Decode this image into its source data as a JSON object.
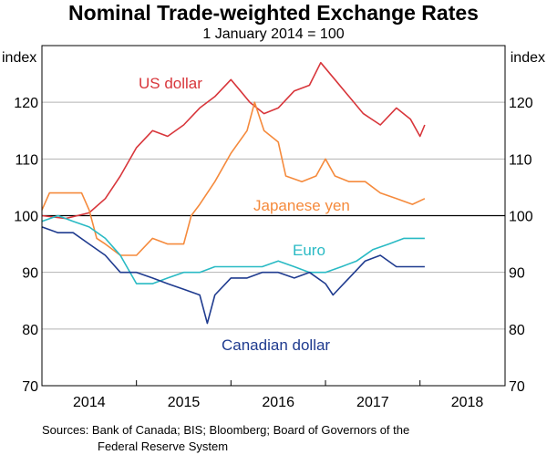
{
  "chart_data": {
    "type": "line",
    "title": "Nominal Trade-weighted Exchange Rates",
    "subtitle": "1 January 2014 = 100",
    "ylabel_left": "index",
    "ylabel_right": "index",
    "ylim": [
      70,
      130
    ],
    "yticks": [
      70,
      80,
      90,
      100,
      110,
      120
    ],
    "xlim": [
      2014.0,
      2018.9
    ],
    "xticks": [
      {
        "label": "2014",
        "center": 2014.5
      },
      {
        "label": "2015",
        "center": 2015.5
      },
      {
        "label": "2016",
        "center": 2016.5
      },
      {
        "label": "2017",
        "center": 2017.5
      },
      {
        "label": "2018",
        "center": 2018.5
      }
    ],
    "year_boundaries": [
      2015,
      2016,
      2017,
      2018
    ],
    "baseline": 100,
    "grid": true,
    "source": "Sources:  Bank of Canada; BIS; Bloomberg; Board of Governors of the",
    "source_line2": "Federal Reserve System",
    "series": [
      {
        "name": "US dollar",
        "color": "#d8363b",
        "points": [
          [
            2014.0,
            100
          ],
          [
            2014.25,
            99.5
          ],
          [
            2014.5,
            100.5
          ],
          [
            2014.67,
            103
          ],
          [
            2014.83,
            107
          ],
          [
            2015.0,
            112
          ],
          [
            2015.17,
            115
          ],
          [
            2015.33,
            114
          ],
          [
            2015.5,
            116
          ],
          [
            2015.67,
            119
          ],
          [
            2015.83,
            121
          ],
          [
            2016.0,
            124
          ],
          [
            2016.1,
            122
          ],
          [
            2016.2,
            120
          ],
          [
            2016.35,
            118
          ],
          [
            2016.5,
            119
          ],
          [
            2016.67,
            122
          ],
          [
            2016.83,
            123
          ],
          [
            2016.95,
            127
          ],
          [
            2017.1,
            124
          ],
          [
            2017.25,
            121
          ],
          [
            2017.4,
            118
          ],
          [
            2017.58,
            116
          ],
          [
            2017.75,
            119
          ],
          [
            2017.9,
            117
          ],
          [
            2018.0,
            114
          ],
          [
            2018.05,
            116
          ]
        ]
      },
      {
        "name": "Japanese yen",
        "color": "#f58a3c",
        "points": [
          [
            2014.0,
            101
          ],
          [
            2014.08,
            104
          ],
          [
            2014.25,
            104
          ],
          [
            2014.42,
            104
          ],
          [
            2014.5,
            101
          ],
          [
            2014.58,
            96
          ],
          [
            2014.67,
            95
          ],
          [
            2014.83,
            93
          ],
          [
            2015.0,
            93
          ],
          [
            2015.17,
            96
          ],
          [
            2015.33,
            95
          ],
          [
            2015.5,
            95
          ],
          [
            2015.58,
            100
          ],
          [
            2015.67,
            102
          ],
          [
            2015.83,
            106
          ],
          [
            2016.0,
            111
          ],
          [
            2016.17,
            115
          ],
          [
            2016.25,
            120
          ],
          [
            2016.35,
            115
          ],
          [
            2016.5,
            113
          ],
          [
            2016.58,
            107
          ],
          [
            2016.75,
            106
          ],
          [
            2016.9,
            107
          ],
          [
            2017.0,
            110
          ],
          [
            2017.1,
            107
          ],
          [
            2017.25,
            106
          ],
          [
            2017.42,
            106
          ],
          [
            2017.58,
            104
          ],
          [
            2017.75,
            103
          ],
          [
            2017.92,
            102
          ],
          [
            2018.05,
            103
          ]
        ]
      },
      {
        "name": "Euro",
        "color": "#29bac4",
        "points": [
          [
            2014.0,
            99
          ],
          [
            2014.17,
            100
          ],
          [
            2014.33,
            99
          ],
          [
            2014.5,
            98
          ],
          [
            2014.67,
            96
          ],
          [
            2014.83,
            93
          ],
          [
            2015.0,
            88
          ],
          [
            2015.17,
            88
          ],
          [
            2015.33,
            89
          ],
          [
            2015.5,
            90
          ],
          [
            2015.67,
            90
          ],
          [
            2015.83,
            91
          ],
          [
            2016.0,
            91
          ],
          [
            2016.17,
            91
          ],
          [
            2016.33,
            91
          ],
          [
            2016.5,
            92
          ],
          [
            2016.67,
            91
          ],
          [
            2016.83,
            90
          ],
          [
            2017.0,
            90
          ],
          [
            2017.17,
            91
          ],
          [
            2017.33,
            92
          ],
          [
            2017.5,
            94
          ],
          [
            2017.67,
            95
          ],
          [
            2017.83,
            96
          ],
          [
            2018.0,
            96
          ],
          [
            2018.05,
            96
          ]
        ]
      },
      {
        "name": "Canadian dollar",
        "color": "#1f3b8f",
        "points": [
          [
            2014.0,
            98
          ],
          [
            2014.17,
            97
          ],
          [
            2014.33,
            97
          ],
          [
            2014.5,
            95
          ],
          [
            2014.67,
            93
          ],
          [
            2014.83,
            90
          ],
          [
            2015.0,
            90
          ],
          [
            2015.17,
            89
          ],
          [
            2015.33,
            88
          ],
          [
            2015.5,
            87
          ],
          [
            2015.67,
            86
          ],
          [
            2015.75,
            81
          ],
          [
            2015.83,
            86
          ],
          [
            2016.0,
            89
          ],
          [
            2016.17,
            89
          ],
          [
            2016.33,
            90
          ],
          [
            2016.5,
            90
          ],
          [
            2016.67,
            89
          ],
          [
            2016.83,
            90
          ],
          [
            2017.0,
            88
          ],
          [
            2017.08,
            86
          ],
          [
            2017.25,
            89
          ],
          [
            2017.42,
            92
          ],
          [
            2017.58,
            93
          ],
          [
            2017.75,
            91
          ],
          [
            2017.92,
            91
          ],
          [
            2018.05,
            91
          ]
        ]
      }
    ]
  }
}
